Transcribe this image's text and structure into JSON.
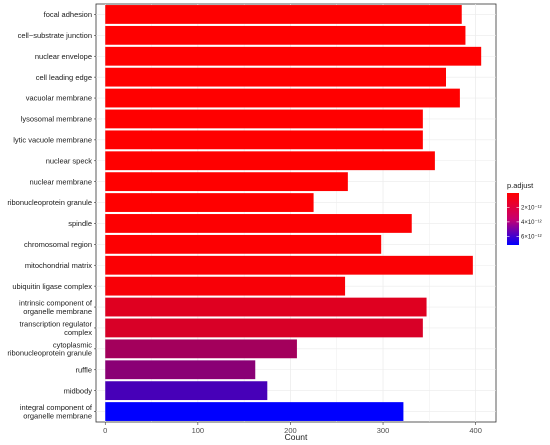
{
  "chart_data": {
    "type": "bar",
    "orientation": "horizontal",
    "xlabel": "Count",
    "ylabel": "",
    "xlim": [
      -10,
      422
    ],
    "x_ticks": [
      0,
      100,
      200,
      300,
      400
    ],
    "grid": true,
    "legend": {
      "title": "p.adjust",
      "position": "right",
      "ticks": [
        {
          "label": "2×10⁻¹²",
          "value": 2e-12
        },
        {
          "label": "4×10⁻¹²",
          "value": 4e-12
        },
        {
          "label": "6×10⁻¹²",
          "value": 6e-12
        }
      ],
      "range": [
        0,
        7.2e-12
      ],
      "color_low": "#FF0000",
      "color_high": "#0000FF"
    },
    "bars": [
      {
        "category": [
          "focal adhesion"
        ],
        "value": 385,
        "p_adjust": 1e-17
      },
      {
        "category": [
          "cell−substrate junction"
        ],
        "value": 389,
        "p_adjust": 1e-17
      },
      {
        "category": [
          "nuclear envelope"
        ],
        "value": 406,
        "p_adjust": 1e-16
      },
      {
        "category": [
          "cell leading edge"
        ],
        "value": 368,
        "p_adjust": 1e-16
      },
      {
        "category": [
          "vacuolar membrane"
        ],
        "value": 383,
        "p_adjust": 1e-16
      },
      {
        "category": [
          "lysosomal membrane"
        ],
        "value": 343,
        "p_adjust": 1e-15
      },
      {
        "category": [
          "lytic vacuole membrane"
        ],
        "value": 343,
        "p_adjust": 1e-15
      },
      {
        "category": [
          "nuclear speck"
        ],
        "value": 356,
        "p_adjust": 1e-15
      },
      {
        "category": [
          "nuclear membrane"
        ],
        "value": 262,
        "p_adjust": 1e-14
      },
      {
        "category": [
          "ribonucleoprotein granule"
        ],
        "value": 225,
        "p_adjust": 1e-14
      },
      {
        "category": [
          "spindle"
        ],
        "value": 331,
        "p_adjust": 5e-14
      },
      {
        "category": [
          "chromosomal region"
        ],
        "value": 298,
        "p_adjust": 5e-14
      },
      {
        "category": [
          "mitochondrial matrix"
        ],
        "value": 397,
        "p_adjust": 1e-13
      },
      {
        "category": [
          "ubiquitin ligase complex"
        ],
        "value": 259,
        "p_adjust": 2e-13
      },
      {
        "category": [
          "intrinsic component of",
          "organelle membrane"
        ],
        "value": 347,
        "p_adjust": 9e-13
      },
      {
        "category": [
          "transcription regulator",
          "complex"
        ],
        "value": 343,
        "p_adjust": 1.1e-12
      },
      {
        "category": [
          "cytoplasmic",
          "ribonucleoprotein granule"
        ],
        "value": 207,
        "p_adjust": 2.6e-12
      },
      {
        "category": [
          "ruffle"
        ],
        "value": 162,
        "p_adjust": 3.3e-12
      },
      {
        "category": [
          "midbody"
        ],
        "value": 175,
        "p_adjust": 5.2e-12
      },
      {
        "category": [
          "integral component of",
          "organelle membrane"
        ],
        "value": 322,
        "p_adjust": 7.2e-12
      }
    ]
  }
}
